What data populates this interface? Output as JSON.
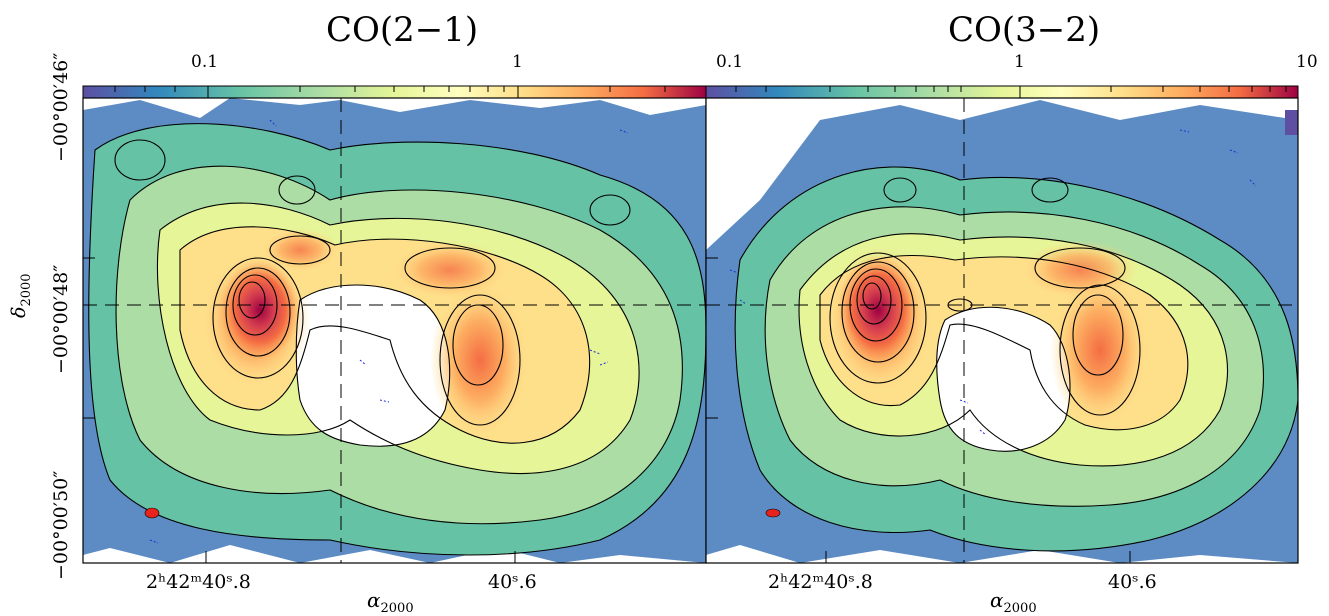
{
  "panels": [
    {
      "title": "CO(2−1)",
      "colorbar_ticks": [
        "0.1",
        "1"
      ]
    },
    {
      "title": "CO(3−2)",
      "colorbar_ticks": [
        "0.1",
        "1",
        "10"
      ]
    }
  ],
  "x_axis": {
    "title_main": "α",
    "title_sub": "2000",
    "tick_left": "2ʰ42ᵐ40ˢ.8",
    "tick_right": "40ˢ.6"
  },
  "y_axis": {
    "title_main": "δ",
    "title_sub": "2000",
    "ticks": [
      "−00°00′46″",
      "−00°00′48″",
      "−00°00′50″"
    ]
  },
  "colormap": "spectral",
  "beam_color": "#e8231c",
  "contour_color": "#000000",
  "negative_contour_color": "#1f2bd6"
}
